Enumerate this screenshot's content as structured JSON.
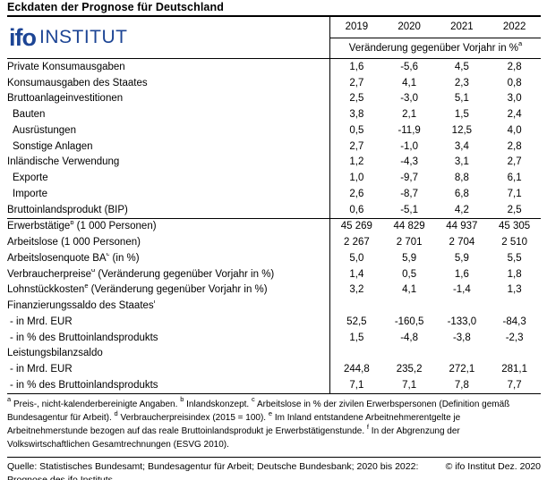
{
  "title": "Eckdaten der Prognose für Deutschland",
  "logo": {
    "ifo": "ifo",
    "institut": "INSTITUT",
    "color": "#1d4595"
  },
  "table": {
    "years": [
      "2019",
      "2020",
      "2021",
      "2022"
    ],
    "subheader": {
      "pre": "Veränderung gegenüber Vorjahr in %",
      "sup": "a"
    },
    "rows": [
      {
        "pre": "Private Konsumausgaben",
        "sup": "",
        "post": "",
        "level": 0,
        "sep": false,
        "values": [
          "1,6",
          "-5,6",
          "4,5",
          "2,8"
        ]
      },
      {
        "pre": "Konsumausgaben des Staates",
        "sup": "",
        "post": "",
        "level": 0,
        "sep": false,
        "values": [
          "2,7",
          "4,1",
          "2,3",
          "0,8"
        ]
      },
      {
        "pre": "Bruttoanlageinvestitionen",
        "sup": "",
        "post": "",
        "level": 0,
        "sep": false,
        "values": [
          "2,5",
          "-3,0",
          "5,1",
          "3,0"
        ]
      },
      {
        "pre": "Bauten",
        "sup": "",
        "post": "",
        "level": 1,
        "sep": false,
        "values": [
          "3,8",
          "2,1",
          "1,5",
          "2,4"
        ]
      },
      {
        "pre": "Ausrüstungen",
        "sup": "",
        "post": "",
        "level": 1,
        "sep": false,
        "values": [
          "0,5",
          "-11,9",
          "12,5",
          "4,0"
        ]
      },
      {
        "pre": "Sonstige Anlagen",
        "sup": "",
        "post": "",
        "level": 1,
        "sep": false,
        "values": [
          "2,7",
          "-1,0",
          "3,4",
          "2,8"
        ]
      },
      {
        "pre": "Inländische Verwendung",
        "sup": "",
        "post": "",
        "level": 0,
        "sep": false,
        "values": [
          "1,2",
          "-4,3",
          "3,1",
          "2,7"
        ]
      },
      {
        "pre": "Exporte",
        "sup": "",
        "post": "",
        "level": 1,
        "sep": false,
        "values": [
          "1,0",
          "-9,7",
          "8,8",
          "6,1"
        ]
      },
      {
        "pre": "Importe",
        "sup": "",
        "post": "",
        "level": 1,
        "sep": false,
        "values": [
          "2,6",
          "-8,7",
          "6,8",
          "7,1"
        ]
      },
      {
        "pre": "Bruttoinlandsprodukt (BIP)",
        "sup": "",
        "post": "",
        "level": 0,
        "sep": false,
        "values": [
          "0,6",
          "-5,1",
          "4,2",
          "2,5"
        ]
      },
      {
        "pre": "Erwerbstätige",
        "sup": "b",
        "post": " (1 000 Personen)",
        "level": 0,
        "sep": true,
        "values": [
          "45 269",
          "44 829",
          "44 937",
          "45 305"
        ]
      },
      {
        "pre": "Arbeitslose (1 000 Personen)",
        "sup": "",
        "post": "",
        "level": 0,
        "sep": false,
        "values": [
          "2 267",
          "2 701",
          "2 704",
          "2 510"
        ]
      },
      {
        "pre": "Arbeitslosenquote BA",
        "sup": "c",
        "post": " (in %)",
        "level": 0,
        "sep": false,
        "values": [
          "5,0",
          "5,9",
          "5,9",
          "5,5"
        ]
      },
      {
        "pre": "Verbraucherpreise",
        "sup": "d",
        "post": " (Veränderung gegenüber Vorjahr in %)",
        "level": 0,
        "sep": false,
        "values": [
          "1,4",
          "0,5",
          "1,6",
          "1,8"
        ]
      },
      {
        "pre": "Lohnstückkosten",
        "sup": "e",
        "post": " (Veränderung gegenüber Vorjahr in %)",
        "level": 0,
        "sep": false,
        "values": [
          "3,2",
          "4,1",
          "-1,4",
          "1,3"
        ]
      },
      {
        "pre": "Finanzierungssaldo des Staates",
        "sup": "f",
        "post": "",
        "level": 0,
        "sep": false,
        "values": [
          "",
          "",
          "",
          ""
        ]
      },
      {
        "pre": "- in Mrd. EUR",
        "sup": "",
        "post": "",
        "level": 2,
        "sep": false,
        "values": [
          "52,5",
          "-160,5",
          "-133,0",
          "-84,3"
        ]
      },
      {
        "pre": "- in % des Bruttoinlandsprodukts",
        "sup": "",
        "post": "",
        "level": 2,
        "sep": false,
        "values": [
          "1,5",
          "-4,8",
          "-3,8",
          "-2,3"
        ]
      },
      {
        "pre": "Leistungsbilanzsaldo",
        "sup": "",
        "post": "",
        "level": 0,
        "sep": false,
        "values": [
          "",
          "",
          "",
          ""
        ]
      },
      {
        "pre": "- in Mrd. EUR",
        "sup": "",
        "post": "",
        "level": 2,
        "sep": false,
        "values": [
          "244,8",
          "235,2",
          "272,1",
          "281,1"
        ]
      },
      {
        "pre": "- in % des Bruttoinlandsprodukts",
        "sup": "",
        "post": "",
        "level": 2,
        "sep": false,
        "values": [
          "7,1",
          "7,1",
          "7,8",
          "7,7"
        ]
      }
    ]
  },
  "footnotes": [
    {
      "sup": "a",
      "text": "Preis-, nicht-kalenderbereinigte Angaben."
    },
    {
      "sup": "b",
      "text": "Inlandskonzept."
    },
    {
      "sup": "c",
      "text": "Arbeitslose in % der zivilen Erwerbspersonen (Definition gemäß Bundesagentur für Arbeit)."
    },
    {
      "sup": "d",
      "text": "Verbraucherpreisindex (2015 = 100)."
    },
    {
      "sup": "e",
      "text": "Im Inland entstandene Arbeitnehmerentgelte je Arbeitnehmerstunde bezogen auf das reale Bruttoinlandsprodukt je Erwerbstätigenstunde."
    },
    {
      "sup": "f",
      "text": "In der Abgrenzung der Volkswirtschaftlichen Gesamtrechnungen (ESVG 2010)."
    }
  ],
  "source": {
    "text": "Quelle: Statistisches Bundesamt; Bundesagentur für Arbeit; Deutsche Bundesbank; 2020 bis 2022: Prognose des ifo Instituts.",
    "copyright": "© ifo Institut Dez. 2020"
  }
}
